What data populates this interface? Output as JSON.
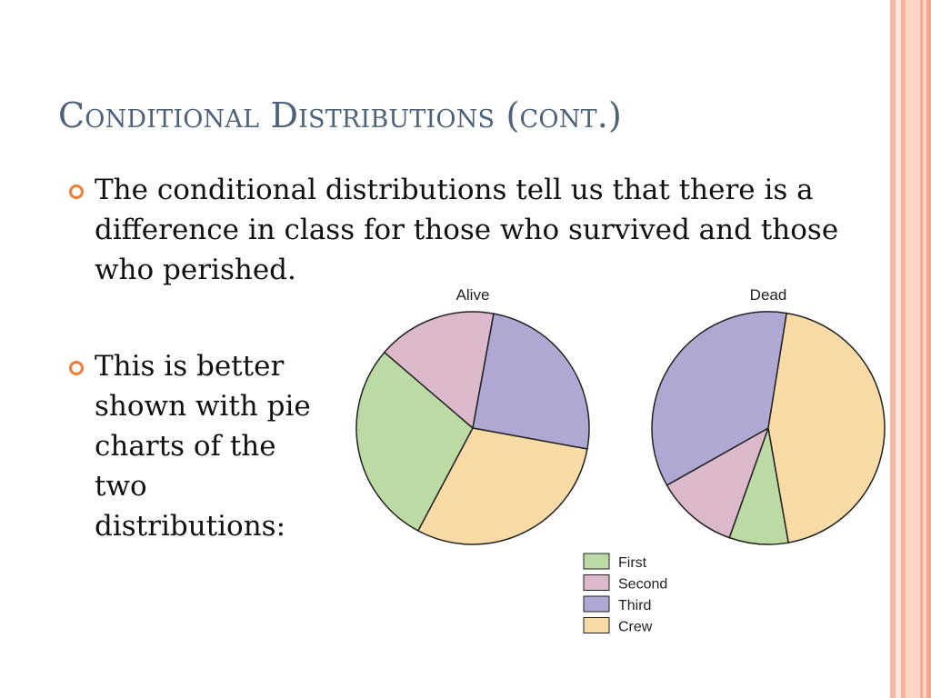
{
  "slide": {
    "title": "Conditional Distributions (cont.)",
    "bullets": [
      "The conditional distributions tell us that there is a difference in class for those who survived and those who perished.",
      "This is better shown with pie charts of the two distributions:"
    ],
    "accent_color": "#ef7d3a",
    "title_color": "#4d6279"
  },
  "chart_data": [
    {
      "type": "pie",
      "title": "Alive",
      "categories": [
        "First",
        "Second",
        "Third",
        "Crew"
      ],
      "values": [
        28.5,
        16.6,
        25.0,
        29.9
      ],
      "colors": [
        "#bcdba4",
        "#dbb9cb",
        "#afa8d3",
        "#f9dba6"
      ]
    },
    {
      "type": "pie",
      "title": "Dead",
      "categories": [
        "First",
        "Second",
        "Third",
        "Crew"
      ],
      "values": [
        8.2,
        11.4,
        35.7,
        44.7
      ],
      "colors": [
        "#bcdba4",
        "#dbb9cb",
        "#afa8d3",
        "#f9dba6"
      ]
    }
  ],
  "legend": {
    "items": [
      {
        "label": "First",
        "color": "#bcdba4"
      },
      {
        "label": "Second",
        "color": "#dbb9cb"
      },
      {
        "label": "Third",
        "color": "#afa8d3"
      },
      {
        "label": "Crew",
        "color": "#f9dba6"
      }
    ],
    "placement": "bottom-right"
  }
}
